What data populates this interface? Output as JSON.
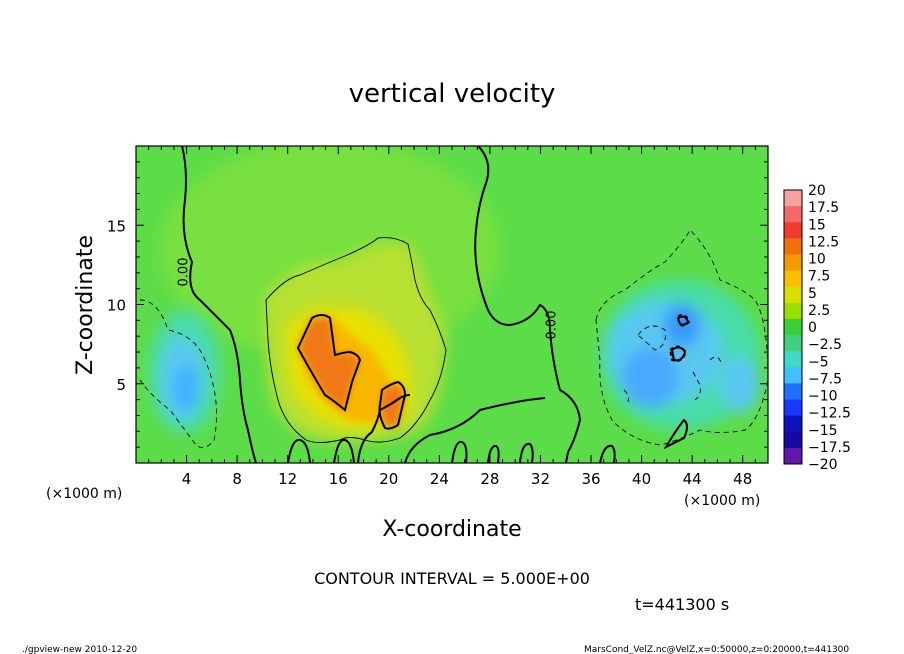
{
  "chart_data": {
    "type": "heatmap",
    "title": "vertical velocity",
    "xlabel": "X-coordinate",
    "ylabel": "Z-coordinate",
    "x_unit": "(×1000 m)",
    "z_unit": "(×1000 m)",
    "xlim": [
      0,
      50
    ],
    "ylim": [
      0,
      20
    ],
    "x_ticks": [
      "4",
      "8",
      "12",
      "16",
      "20",
      "24",
      "28",
      "32",
      "36",
      "40",
      "44",
      "48"
    ],
    "y_ticks": [
      "5",
      "10",
      "15"
    ],
    "colorbar": {
      "labels": [
        "20",
        "17.5",
        "15",
        "12.5",
        "10",
        "7.5",
        "5",
        "2.5",
        "0",
        "−2.5",
        "−5",
        "−7.5",
        "−10",
        "−12.5",
        "−15",
        "−17.5",
        "−20"
      ],
      "colors": [
        "#f7a2a2",
        "#f46a6a",
        "#f03c2c",
        "#f07010",
        "#f49a00",
        "#f8c000",
        "#d8e000",
        "#98e000",
        "#38d038",
        "#40d080",
        "#40d8c8",
        "#40c0ff",
        "#2070ff",
        "#1838ff",
        "#1010c0",
        "#1808a0",
        "#6018a8"
      ]
    },
    "contour_label": "0.00",
    "contour_interval_text": "CONTOUR INTERVAL = 5.000E+00",
    "time_text": "t=441300 s"
  },
  "footer": {
    "left": "./gpview-new  2010-12-20",
    "right": "MarsCond_VelZ.nc@VelZ,x=0:50000,z=0:20000,t=441300"
  }
}
